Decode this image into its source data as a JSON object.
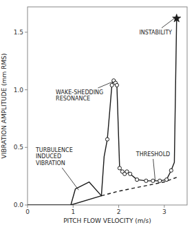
{
  "chart_data": {
    "type": "line",
    "xlabel": "PITCH FLOW VELOCITY (m/s)",
    "ylabel": "VIBRATION AMPLITUDE (mm RMS)",
    "xlim": [
      0,
      3.5
    ],
    "ylim": [
      0,
      1.72
    ],
    "xticks": [
      0,
      1.0,
      2.0,
      3.0
    ],
    "yticks": [
      {
        "value": 0,
        "label": "0.0"
      },
      0.5,
      {
        "value": 1.0,
        "label": "1.0"
      },
      1.5
    ],
    "color": "#1a1a1a",
    "series": [
      {
        "type": "line",
        "line_style": "solid",
        "x": [
          1.62,
          1.68,
          1.75,
          1.8,
          1.85,
          1.87,
          1.89,
          1.91,
          1.93,
          1.96,
          2.02,
          2.08,
          2.13,
          2.18,
          2.25,
          2.4,
          2.6,
          2.75,
          2.9,
          3.05,
          3.15,
          3.22,
          3.27
        ],
        "values": [
          0.08,
          0.42,
          0.57,
          0.8,
          1.04,
          1.07,
          1.08,
          1.08,
          1.06,
          1.04,
          0.32,
          0.29,
          0.27,
          0.29,
          0.27,
          0.22,
          0.21,
          0.21,
          0.21,
          0.22,
          0.3,
          0.37,
          1.62
        ]
      },
      {
        "type": "scatter",
        "marker": "circle",
        "x": [
          1.75,
          1.85,
          1.89,
          1.93,
          1.96,
          2.02,
          2.08,
          2.13,
          2.18,
          2.25,
          2.4,
          2.6,
          2.75,
          2.9,
          3.05,
          3.15
        ],
        "values": [
          0.57,
          1.04,
          1.08,
          1.06,
          1.04,
          0.32,
          0.29,
          0.27,
          0.29,
          0.27,
          0.22,
          0.21,
          0.21,
          0.21,
          0.22,
          0.3
        ]
      },
      {
        "type": "line",
        "line_style": "solid",
        "x": [
          0.0,
          0.95,
          1.05,
          1.35,
          1.62,
          0.95,
          0.0
        ],
        "values": [
          0.0,
          0.0,
          0.14,
          0.2,
          0.08,
          0.0,
          0.0
        ]
      },
      {
        "type": "line",
        "line_style": "dashed",
        "x": [
          1.62,
          2.0,
          2.5,
          3.0,
          3.27
        ],
        "values": [
          0.08,
          0.12,
          0.16,
          0.2,
          0.24
        ]
      },
      {
        "type": "scatter",
        "marker": "star",
        "x": [
          3.27
        ],
        "values": [
          1.62
        ]
      }
    ],
    "annotations": [
      {
        "text": "INSTABILITY",
        "xy": [
          3.22,
          1.62
        ],
        "xytext": [
          2.45,
          1.5
        ]
      },
      {
        "text": "WAKE-SHEDDING\nRESONANCE",
        "xy": [
          1.87,
          1.07
        ],
        "xytext": [
          0.62,
          0.95
        ]
      },
      {
        "text": "TURBULENCE\nINDUCED\nVIBRATION",
        "xy": [
          1.12,
          0.13
        ],
        "xytext": [
          0.18,
          0.42
        ]
      },
      {
        "text": "THRESHOLD",
        "xy": [
          2.8,
          0.21
        ],
        "xytext": [
          2.38,
          0.44
        ]
      }
    ]
  }
}
